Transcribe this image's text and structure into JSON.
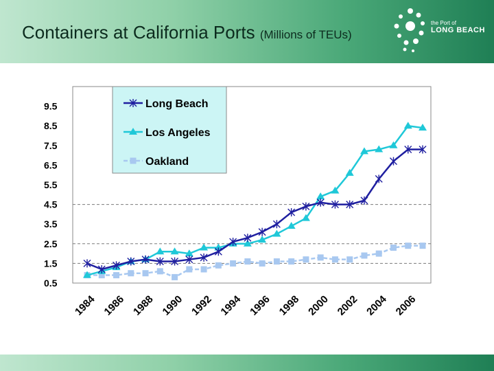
{
  "header": {
    "title": "Containers at California Ports",
    "subtitle": "(Millions of TEUs)",
    "brand_small": "the Port of",
    "brand_large": "LONG BEACH"
  },
  "colors": {
    "long_beach": "#1f1fa0",
    "los_angeles": "#1fc8d8",
    "oakland": "#a8c8f0",
    "legend_bg": "#ccf5f5",
    "header_dark": "#1f7f55"
  },
  "chart_data": {
    "type": "line",
    "title": "Containers at California Ports (Millions of TEUs)",
    "xlabel": "",
    "ylabel": "",
    "x": [
      1984,
      1985,
      1986,
      1987,
      1988,
      1989,
      1990,
      1991,
      1992,
      1993,
      1994,
      1995,
      1996,
      1997,
      1998,
      1999,
      2000,
      2001,
      2002,
      2003,
      2004,
      2005,
      2006,
      2007
    ],
    "x_tick_labels": [
      "1984",
      "1986",
      "1988",
      "1990",
      "1992",
      "1994",
      "1996",
      "1998",
      "2000",
      "2002",
      "2004",
      "2006"
    ],
    "y_tick_labels": [
      "9.5",
      "8.5",
      "7.5",
      "6.5",
      "5.5",
      "4.5",
      "3.5",
      "2.5",
      "1.5",
      "0.5"
    ],
    "ylim": [
      0.5,
      10.5
    ],
    "dashed_gridlines_at": [
      1.5,
      2.5,
      4.5
    ],
    "legend_position": "top-left",
    "series": [
      {
        "name": "Long Beach",
        "marker": "star",
        "values": [
          1.5,
          1.2,
          1.4,
          1.6,
          1.7,
          1.6,
          1.6,
          1.7,
          1.8,
          2.1,
          2.6,
          2.8,
          3.1,
          3.5,
          4.1,
          4.4,
          4.6,
          4.5,
          4.5,
          4.7,
          5.8,
          6.7,
          7.3,
          7.3
        ]
      },
      {
        "name": "Los Angeles",
        "marker": "triangle",
        "values": [
          0.9,
          1.1,
          1.3,
          1.6,
          1.7,
          2.1,
          2.1,
          2.0,
          2.3,
          2.3,
          2.5,
          2.5,
          2.7,
          3.0,
          3.4,
          3.8,
          4.9,
          5.2,
          6.1,
          7.2,
          7.3,
          7.5,
          8.5,
          8.4
        ]
      },
      {
        "name": "Oakland",
        "marker": "square",
        "values": [
          0.9,
          0.9,
          0.9,
          1.0,
          1.0,
          1.1,
          0.8,
          1.2,
          1.2,
          1.4,
          1.5,
          1.6,
          1.5,
          1.6,
          1.6,
          1.7,
          1.8,
          1.7,
          1.7,
          1.9,
          2.0,
          2.3,
          2.4,
          2.4
        ]
      }
    ]
  }
}
